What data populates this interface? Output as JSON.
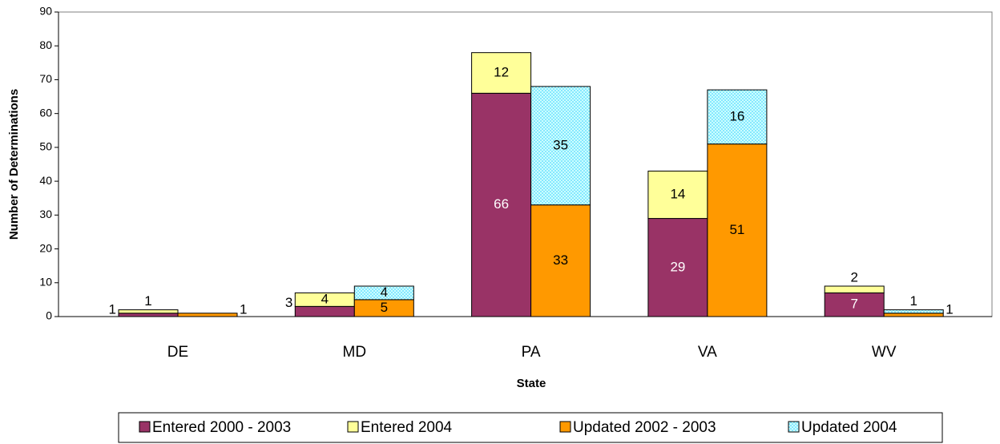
{
  "chart_data": {
    "type": "grouped_stacked_bar",
    "categories": [
      "DE",
      "MD",
      "PA",
      "VA",
      "WV"
    ],
    "x_label": "State",
    "y_label": "Number of Determinations",
    "ylim": [
      0,
      90
    ],
    "yticks": [
      0,
      10,
      20,
      30,
      40,
      50,
      60,
      70,
      80,
      90
    ],
    "series": [
      {
        "name": "Entered 2000 - 2003",
        "color": "#993366",
        "stack": "Entered",
        "values": [
          1,
          3,
          66,
          29,
          7
        ]
      },
      {
        "name": "Entered 2004",
        "color": "#ffff99",
        "stack": "Entered",
        "values": [
          1,
          4,
          12,
          14,
          2
        ]
      },
      {
        "name": "Updated 2002 - 2003",
        "color": "#ff9900",
        "stack": "Updated",
        "values": [
          1,
          5,
          33,
          51,
          1
        ]
      },
      {
        "name": "Updated 2004",
        "color": "#ccffff",
        "stack": "Updated",
        "values": [
          null,
          4,
          35,
          16,
          1
        ]
      }
    ]
  }
}
